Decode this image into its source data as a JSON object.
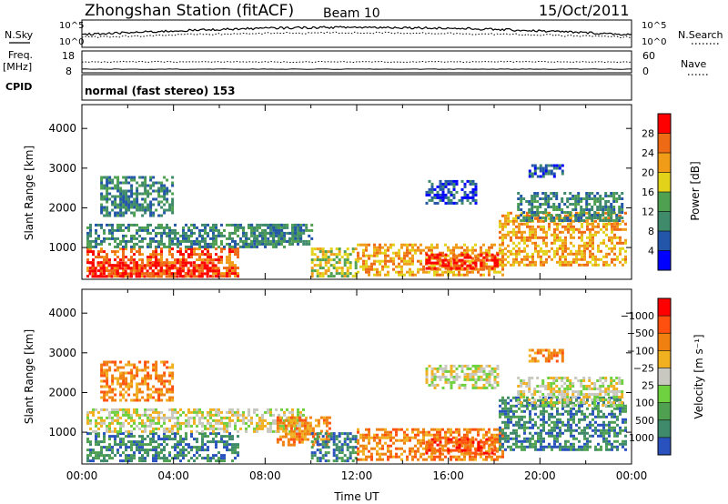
{
  "header": {
    "title": "Zhongshan Station (fitACF)",
    "beam": "Beam 10",
    "date": "15/Oct/2011"
  },
  "top_panels": {
    "nsky_label": "N.Sky",
    "nsky_ticks": [
      "10^5",
      "10^0"
    ],
    "nsearch_label": "N.Search",
    "nsearch_ticks": [
      "10^5",
      "10^0"
    ],
    "freq_label": "Freq.",
    "freq_unit": "[MHz]",
    "freq_ticks": [
      "18",
      "8"
    ],
    "nave_label": "Nave",
    "nave_ticks": [
      "60",
      "0"
    ],
    "cpid_label": "CPID",
    "cpid_text": "normal (fast stereo) 153"
  },
  "chart_data": [
    {
      "type": "heatmap",
      "panel": "power",
      "ylabel": "Slant Range [km]",
      "yticks": [
        1000,
        2000,
        3000,
        4000
      ],
      "ylim": [
        200,
        4600
      ],
      "xlim": [
        0,
        24
      ],
      "colorbar_label": "Power [dB]",
      "colorbar_ticks": [
        "4",
        "8",
        "12",
        "16",
        "20",
        "24",
        "28"
      ],
      "colorbar_colors": [
        "#0000ff",
        "#2356a8",
        "#3e8a6a",
        "#4fa050",
        "#e3d21a",
        "#f09c19",
        "#ef6a14",
        "#ff0000"
      ],
      "regions": [
        {
          "x": [
            0.2,
            6.8
          ],
          "y": [
            250,
            1000
          ],
          "level": 6
        },
        {
          "x": [
            0.3,
            6.0
          ],
          "y": [
            300,
            650
          ],
          "level": 7
        },
        {
          "x": [
            0.2,
            9.5
          ],
          "y": [
            1000,
            1600
          ],
          "level": 2
        },
        {
          "x": [
            0.8,
            4.0
          ],
          "y": [
            1800,
            2800
          ],
          "level": 2
        },
        {
          "x": [
            7.0,
            10.0
          ],
          "y": [
            1100,
            1600
          ],
          "level": 2
        },
        {
          "x": [
            10.0,
            12.0
          ],
          "y": [
            300,
            1000
          ],
          "level": 4
        },
        {
          "x": [
            12.0,
            18.4
          ],
          "y": [
            300,
            1100
          ],
          "level": 5
        },
        {
          "x": [
            15.0,
            18.2
          ],
          "y": [
            450,
            850
          ],
          "level": 7
        },
        {
          "x": [
            15.0,
            17.2
          ],
          "y": [
            2100,
            2700
          ],
          "level": 1
        },
        {
          "x": [
            18.2,
            23.8
          ],
          "y": [
            550,
            1900
          ],
          "level": 5
        },
        {
          "x": [
            19.0,
            23.6
          ],
          "y": [
            1700,
            2400
          ],
          "level": 2
        },
        {
          "x": [
            19.5,
            21.0
          ],
          "y": [
            2800,
            3100
          ],
          "level": 1
        }
      ]
    },
    {
      "type": "heatmap",
      "panel": "velocity",
      "ylabel": "Slant Range [km]",
      "yticks": [
        1000,
        2000,
        3000,
        4000
      ],
      "ylim": [
        200,
        4600
      ],
      "xlim": [
        0,
        24
      ],
      "xticks": [
        "00:00",
        "04:00",
        "08:00",
        "12:00",
        "16:00",
        "20:00",
        "00:00"
      ],
      "xlabel": "Time UT",
      "colorbar_label": "Velocity [m s⁻¹]",
      "colorbar_ticks": [
        "1000",
        "500",
        "100",
        "25",
        "−25",
        "−100",
        "−500",
        "−1000"
      ],
      "colorbar_colors": [
        "#2a52be",
        "#3e8a6a",
        "#4fa050",
        "#6fd040",
        "#c8c8c0",
        "#f0b020",
        "#f08010",
        "#ff5010",
        "#ff0000"
      ],
      "regions": [
        {
          "x": [
            0.2,
            6.8
          ],
          "y": [
            250,
            1000
          ],
          "level": 1
        },
        {
          "x": [
            0.2,
            9.8
          ],
          "y": [
            1000,
            1600
          ],
          "level": 4
        },
        {
          "x": [
            0.8,
            4.0
          ],
          "y": [
            1800,
            2800
          ],
          "level": 6
        },
        {
          "x": [
            8.5,
            10.8
          ],
          "y": [
            700,
            1400
          ],
          "level": 6
        },
        {
          "x": [
            10.0,
            12.0
          ],
          "y": [
            300,
            1000
          ],
          "level": 1
        },
        {
          "x": [
            12.0,
            18.4
          ],
          "y": [
            300,
            1100
          ],
          "level": 6
        },
        {
          "x": [
            15.0,
            18.2
          ],
          "y": [
            450,
            850
          ],
          "level": 7
        },
        {
          "x": [
            15.0,
            18.2
          ],
          "y": [
            2100,
            2700
          ],
          "level": 4
        },
        {
          "x": [
            18.2,
            23.8
          ],
          "y": [
            550,
            1900
          ],
          "level": 1
        },
        {
          "x": [
            19.0,
            23.6
          ],
          "y": [
            1700,
            2400
          ],
          "level": 4
        },
        {
          "x": [
            19.5,
            21.0
          ],
          "y": [
            2800,
            3100
          ],
          "level": 6
        }
      ]
    }
  ]
}
